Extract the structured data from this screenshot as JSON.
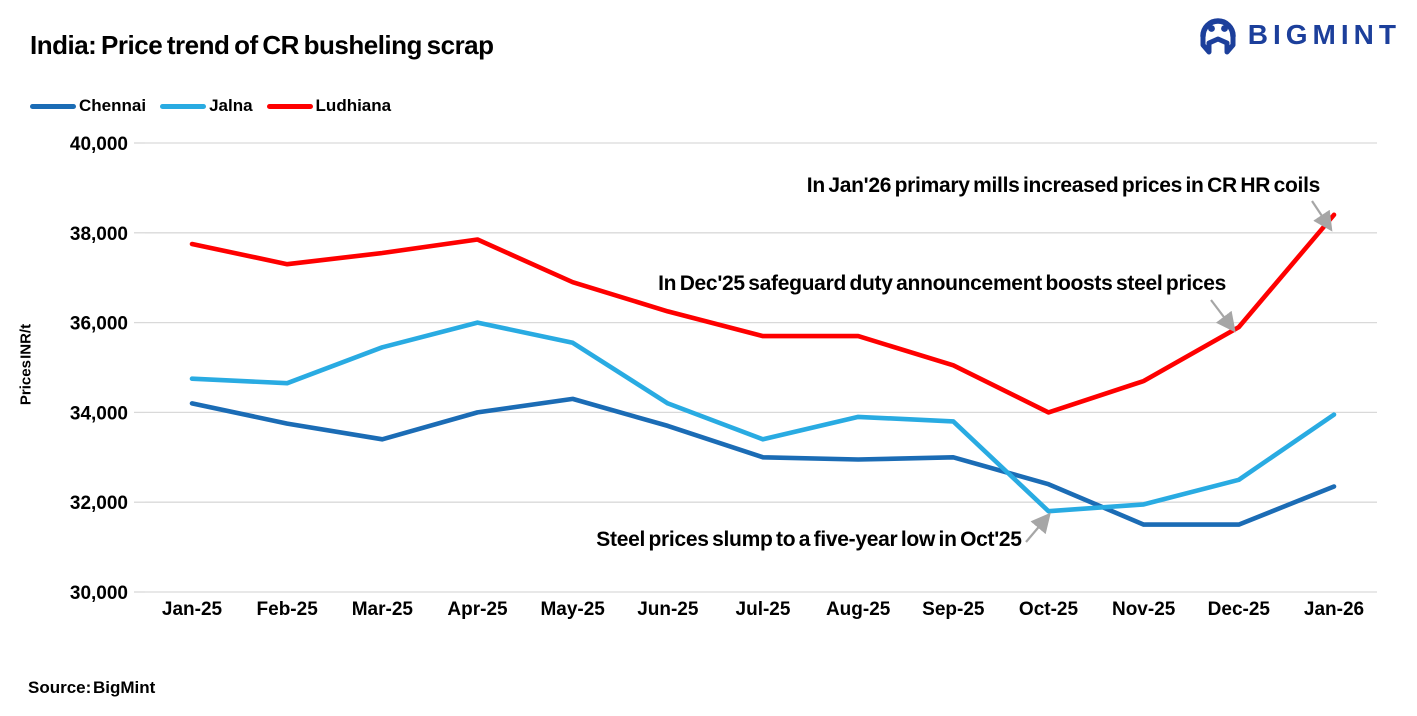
{
  "header": {
    "title": "India: Price trend of CR busheling scrap",
    "logo_text": "BIGMINT"
  },
  "legend": [
    {
      "label": "Chennai",
      "color": "#1B6CB5"
    },
    {
      "label": "Jalna",
      "color": "#29ABE2"
    },
    {
      "label": "Ludhiana",
      "color": "#FE0000"
    }
  ],
  "chart_data": {
    "type": "line",
    "title": "India: Price trend of CR busheling scrap",
    "xlabel": "",
    "ylabel": "Prices INR/t",
    "ylim": [
      30000,
      40000
    ],
    "ytick_interval": 2000,
    "ytick_labels": [
      "30,000",
      "32,000",
      "34,000",
      "36,000",
      "38,000",
      "40,000"
    ],
    "grid": "horizontal",
    "gridline_color": "#D9D9D9",
    "legend_position": "top-left",
    "categories": [
      "Jan-25",
      "Feb-25",
      "Mar-25",
      "Apr-25",
      "May-25",
      "Jun-25",
      "Jul-25",
      "Aug-25",
      "Sep-25",
      "Oct-25",
      "Nov-25",
      "Dec-25",
      "Jan-26"
    ],
    "series": [
      {
        "name": "Chennai",
        "color": "#1B6CB5",
        "values": [
          34200,
          33750,
          33400,
          34000,
          34300,
          33700,
          33000,
          32950,
          33000,
          32400,
          31500,
          31500,
          32350
        ]
      },
      {
        "name": "Jalna",
        "color": "#29ABE2",
        "values": [
          34750,
          34650,
          35450,
          36000,
          35550,
          34200,
          33400,
          33900,
          33800,
          31800,
          31950,
          32500,
          33950
        ]
      },
      {
        "name": "Ludhiana",
        "color": "#FE0000",
        "values": [
          37750,
          37300,
          37550,
          37850,
          36900,
          36250,
          35700,
          35700,
          35050,
          34000,
          34700,
          35900,
          38400
        ]
      }
    ],
    "annotations": [
      {
        "text": "In Jan'26 primary mills increased prices in CR HR coils",
        "points_to": "Ludhiana Jan-26"
      },
      {
        "text": "In Dec'25 safeguard duty announcement boosts steel prices",
        "points_to": "Ludhiana Dec-25"
      },
      {
        "text": "Steel prices slump to a five-year low in Oct'25",
        "points_to": "Jalna Oct-25"
      }
    ]
  },
  "footer": {
    "source": "Source: BigMint"
  }
}
